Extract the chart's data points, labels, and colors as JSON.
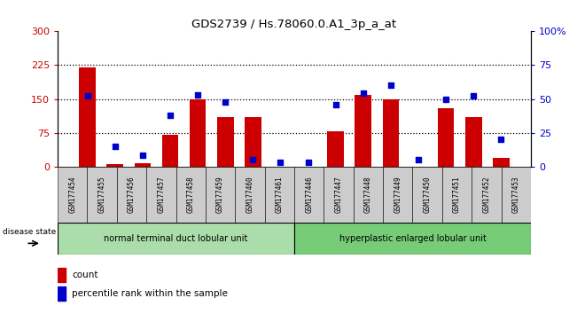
{
  "title": "GDS2739 / Hs.78060.0.A1_3p_a_at",
  "samples": [
    "GSM177454",
    "GSM177455",
    "GSM177456",
    "GSM177457",
    "GSM177458",
    "GSM177459",
    "GSM177460",
    "GSM177461",
    "GSM177446",
    "GSM177447",
    "GSM177448",
    "GSM177449",
    "GSM177450",
    "GSM177451",
    "GSM177452",
    "GSM177453"
  ],
  "counts": [
    220,
    5,
    8,
    70,
    150,
    110,
    110,
    0,
    0,
    78,
    158,
    150,
    0,
    130,
    110,
    18
  ],
  "percentiles": [
    52,
    15,
    8,
    38,
    53,
    48,
    5,
    3,
    3,
    46,
    54,
    60,
    5,
    50,
    52,
    20
  ],
  "group1_label": "normal terminal duct lobular unit",
  "group2_label": "hyperplastic enlarged lobular unit",
  "group1_count": 8,
  "group2_count": 8,
  "left_ylim": [
    0,
    300
  ],
  "right_ylim": [
    0,
    100
  ],
  "left_yticks": [
    0,
    75,
    150,
    225,
    300
  ],
  "right_yticks": [
    0,
    25,
    50,
    75,
    100
  ],
  "right_yticklabels": [
    "0",
    "25",
    "50",
    "75",
    "100%"
  ],
  "bar_color": "#cc0000",
  "dot_color": "#0000cc",
  "bg_color": "#ffffff",
  "tick_bg_color": "#cccccc",
  "group1_bg": "#aaddaa",
  "group2_bg": "#77cc77",
  "left_tick_color": "#cc0000",
  "right_tick_color": "#0000cc",
  "legend_count_label": "count",
  "legend_pct_label": "percentile rank within the sample",
  "hgrid_vals": [
    75,
    150,
    225
  ],
  "disease_state_label": "disease state"
}
